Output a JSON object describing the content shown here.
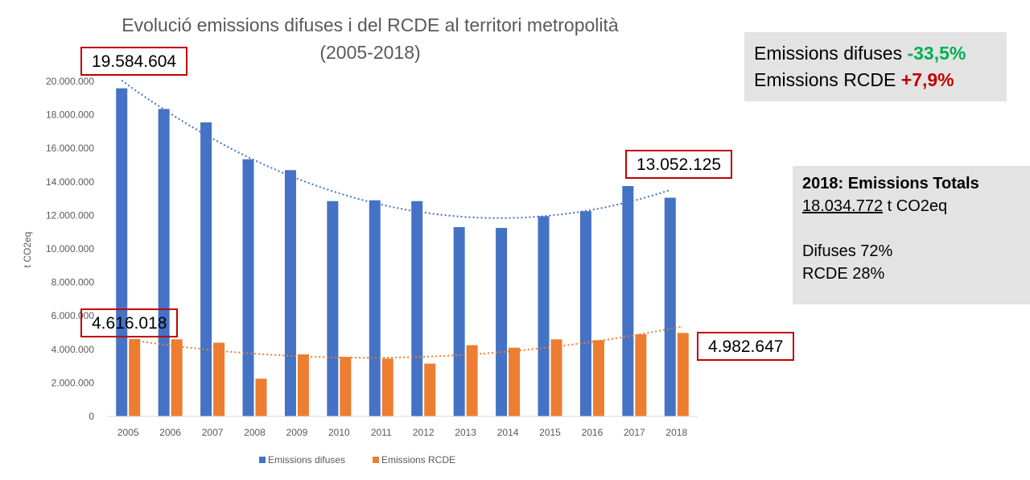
{
  "chart_data": {
    "type": "bar",
    "title": "Evolució emissions difuses i del RCDE al territori metropolità (2005-2018)",
    "ylabel": "t CO2eq",
    "xlabel": "",
    "categories": [
      "2005",
      "2006",
      "2007",
      "2008",
      "2009",
      "2010",
      "2011",
      "2012",
      "2013",
      "2014",
      "2015",
      "2016",
      "2017",
      "2018"
    ],
    "series": [
      {
        "name": "Emissions difuses",
        "color": "#4472c4",
        "values": [
          19584604,
          18350000,
          17550000,
          15350000,
          14700000,
          12850000,
          12900000,
          12850000,
          11300000,
          11250000,
          11950000,
          12250000,
          13750000,
          13052125
        ]
      },
      {
        "name": "Emissions RCDE",
        "color": "#ed7d31",
        "values": [
          4616018,
          4600000,
          4400000,
          2250000,
          3700000,
          3550000,
          3450000,
          3150000,
          4250000,
          4100000,
          4600000,
          4550000,
          4900000,
          4982647
        ]
      }
    ],
    "trendlines": [
      {
        "series": "Emissions difuses",
        "type": "polynomial",
        "style": "dotted",
        "color": "#4472c4"
      },
      {
        "series": "Emissions RCDE",
        "type": "polynomial",
        "style": "dotted",
        "color": "#ed7d31"
      }
    ],
    "ylim": [
      0,
      20000000
    ],
    "yticks": [
      "0",
      "2.000.000",
      "4.000.000",
      "6.000.000",
      "8.000.000",
      "10.000.000",
      "12.000.000",
      "14.000.000",
      "16.000.000",
      "18.000.000",
      "20.000.000"
    ],
    "grid": false,
    "legend": "bottom"
  },
  "title_lines": [
    "Evolució emissions difuses i del RCDE al territori metropolità",
    "(2005-2018)"
  ],
  "callouts": [
    "19.584.604",
    "13.052.125",
    "4.616.018",
    "4.982.647"
  ],
  "summary": {
    "line1_label": "Emissions difuses ",
    "line1_value": "-33,5%",
    "line2_label": "Emissions RCDE ",
    "line2_value": "+7,9%"
  },
  "totals": {
    "heading": "2018: Emissions Totals",
    "total_value": "18.034.772",
    "total_unit": " t CO2eq",
    "difuses_share": "Difuses 72%",
    "rcde_share": "RCDE 28%"
  },
  "colors": {
    "difuses": "#4472c4",
    "rcde": "#ed7d31",
    "callout_border": "#c00000",
    "positive": "#00b050",
    "negative": "#c00000"
  }
}
